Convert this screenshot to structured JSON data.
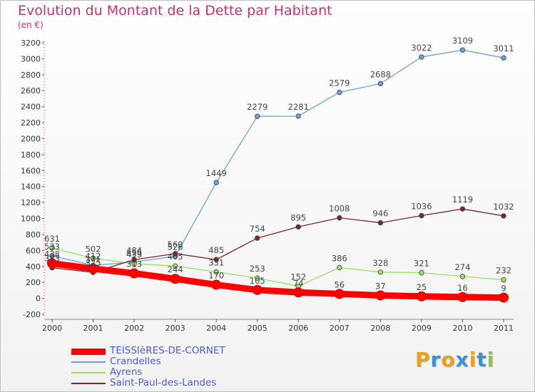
{
  "title": "Evolution du Montant de la Dette par Habitant",
  "subtitle": "(en €)",
  "logo": {
    "text": "Proxiti",
    "colors": [
      "#e8a21b",
      "#3f8fd3",
      "#e8a21b",
      "#3f8fd3",
      "#e8a21b",
      "#3f8fd3",
      "#8cc63f"
    ]
  },
  "chart_data": {
    "type": "line",
    "title": "Evolution du Montant de la Dette par Habitant",
    "ylabel": "(en €)",
    "xlabel": "",
    "ylim": [
      -200,
      3200
    ],
    "y_ticks": [
      -200,
      0,
      200,
      400,
      600,
      800,
      1000,
      1200,
      1400,
      1600,
      1800,
      2000,
      2200,
      2400,
      2600,
      2800,
      3000,
      3200
    ],
    "categories": [
      "2000",
      "2001",
      "2002",
      "2003",
      "2004",
      "2005",
      "2006",
      "2007",
      "2008",
      "2009",
      "2010",
      "2011"
    ],
    "grid": false,
    "legend_position": "bottom-left",
    "series": [
      {
        "name": "TEISSIèRES-DE-CORNET",
        "color": "#ff0000",
        "values": [
          438,
          371,
          313,
          244,
          170,
          105,
          74,
          56,
          37,
          25,
          16,
          9
        ]
      },
      {
        "name": "Crandelles",
        "color": "#6aa2d6",
        "values": [
          533,
          412,
          456,
          526,
          1449,
          2279,
          2281,
          2579,
          2688,
          3022,
          3109,
          3011
        ]
      },
      {
        "name": "Ayrens",
        "color": "#99e066",
        "values": [
          631,
          502,
          433,
          405,
          331,
          253,
          152,
          386,
          328,
          321,
          274,
          232
        ]
      },
      {
        "name": "Saint-Paul-des-Landes",
        "color": "#7a2828",
        "values": [
          383,
          325,
          484,
          560,
          485,
          754,
          895,
          1008,
          946,
          1036,
          1119,
          1032
        ]
      }
    ]
  }
}
